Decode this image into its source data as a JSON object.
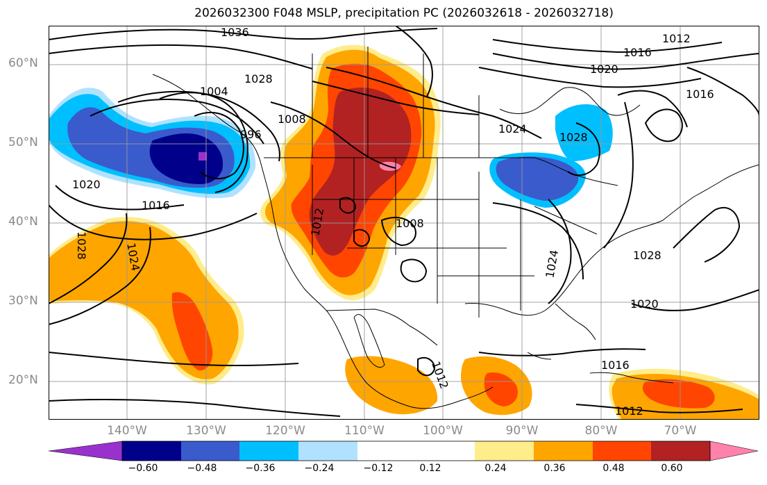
{
  "title": "2026032300 F048 MSLP, precipitation PC (2026032618 - 2026032718)",
  "latitude_labels": [
    "60°N",
    "50°N",
    "40°N",
    "30°N",
    "20°N"
  ],
  "longitude_labels": [
    "140°W",
    "130°W",
    "120°W",
    "110°W",
    "100°W",
    "90°W",
    "80°W",
    "70°W"
  ],
  "isobar_labels": [
    "1036",
    "1012",
    "1016",
    "1020",
    "1028",
    "1004",
    "1016",
    "1024",
    "1028",
    "996",
    "1008",
    "1020",
    "1016",
    "1028",
    "1024",
    "1008",
    "1012",
    "1028",
    "1024",
    "1020",
    "1016",
    "1012",
    "1012"
  ],
  "colorbar": {
    "ticks": [
      "−0.60",
      "−0.48",
      "−0.36",
      "−0.24",
      "−0.12",
      "0.12",
      "0.24",
      "0.36",
      "0.48",
      "0.60"
    ],
    "colors": [
      "#9932cc",
      "#00008b",
      "#3a5bcc",
      "#00bfff",
      "#b0e2ff",
      "#ffffff",
      "#ffec8b",
      "#ffa500",
      "#ff4500",
      "#b22222",
      "#ff82ab"
    ]
  },
  "colors": {
    "strong_negative": "#00008b",
    "negative": "#3a5bcc",
    "moderate_negative": "#00bfff",
    "weak_negative": "#b0e2ff",
    "weak_positive": "#ffec8b",
    "positive": "#ffa500",
    "moderate_positive": "#ff4500",
    "strong_positive": "#b22222",
    "extreme_positive": "#ff82ab",
    "extreme_negative": "#9932cc"
  }
}
